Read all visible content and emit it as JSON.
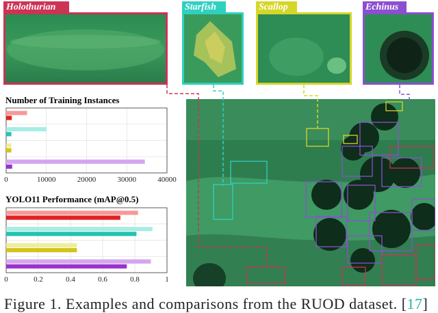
{
  "crops": [
    {
      "label": "Holothurian",
      "color": "#cc3355"
    },
    {
      "label": "Starfish",
      "color": "#2ed1c0"
    },
    {
      "label": "Scallop",
      "color": "#d6d629"
    },
    {
      "label": "Echinus",
      "color": "#8c4fd1"
    }
  ],
  "caption": {
    "text": "Figure 1. Examples and comparisons from the RUOD dataset. [",
    "ref": "17",
    "tail": "]"
  },
  "chart_data": [
    {
      "type": "bar",
      "title": "Number of Training Instances",
      "categories": [
        "Holothurian",
        "Starfish",
        "Scallop",
        "Echinus"
      ],
      "series": [
        {
          "values": [
            5200,
            10000,
            1300,
            34500
          ],
          "colors": [
            "#f79999",
            "#a6ede3",
            "#eeee99",
            "#d4a6ee"
          ]
        },
        {
          "values": [
            1400,
            1300,
            1300,
            1500
          ],
          "colors": [
            "#e02222",
            "#22c4b0",
            "#d4c41c",
            "#9933cc"
          ]
        }
      ],
      "xlim": [
        0,
        40000
      ],
      "xticks": [
        "0",
        "10000",
        "20000",
        "30000",
        "40000"
      ],
      "grid": true
    },
    {
      "type": "bar",
      "title": "YOLO11 Performance (mAP@0.5)",
      "categories": [
        "Holothurian",
        "Starfish",
        "Scallop",
        "Echinus"
      ],
      "series": [
        {
          "values": [
            0.82,
            0.91,
            0.44,
            0.9
          ],
          "colors": [
            "#f79999",
            "#a6ede3",
            "#eeee99",
            "#d4a6ee"
          ]
        },
        {
          "values": [
            0.71,
            0.81,
            0.44,
            0.75
          ],
          "colors": [
            "#e02222",
            "#22c4b0",
            "#d4c41c",
            "#9933cc"
          ]
        }
      ],
      "xlim": [
        0,
        1
      ],
      "xticks": [
        "0",
        "0.2",
        "0.4",
        "0.6",
        "0.8",
        "1"
      ],
      "grid": true
    }
  ]
}
